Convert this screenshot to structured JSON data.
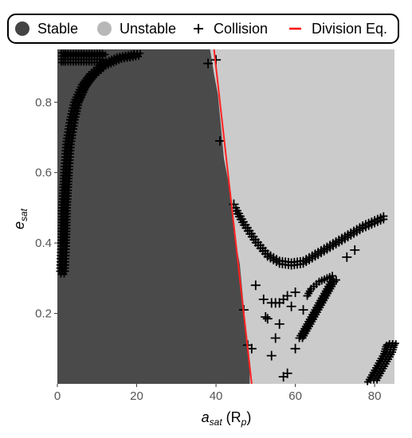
{
  "chart_data": {
    "type": "scatter",
    "xlabel": {
      "main": "a",
      "sub": "sat",
      "unit_pre": "(R",
      "unit_sub": "p",
      "unit_post": ")"
    },
    "ylabel": {
      "main": "e",
      "sub": "sat"
    },
    "xlim": [
      0,
      85
    ],
    "ylim": [
      0,
      0.95
    ],
    "x_ticks": [
      0,
      20,
      40,
      60,
      80
    ],
    "y_ticks": [
      0.2,
      0.4,
      0.6,
      0.8
    ],
    "grid": false,
    "legend_position": "top",
    "legend": [
      {
        "label": "Stable",
        "marker": "filled-circle",
        "color": "#444444"
      },
      {
        "label": "Unstable",
        "marker": "filled-circle",
        "color": "#b8b8b8"
      },
      {
        "label": "Collision",
        "marker": "plus",
        "color": "#000000"
      },
      {
        "label": "Division Eq.",
        "marker": "line",
        "color": "#ff0000"
      }
    ],
    "colors": {
      "stable": "#4a4a4a",
      "unstable": "#cbcbcb",
      "collision": "#000000",
      "division": "#ff2222"
    },
    "stable_boundary": [
      [
        38.5,
        0.95
      ],
      [
        39.5,
        0.88
      ],
      [
        40.5,
        0.82
      ],
      [
        41,
        0.76
      ],
      [
        41.5,
        0.7
      ],
      [
        42,
        0.64
      ],
      [
        43,
        0.58
      ],
      [
        44,
        0.52
      ],
      [
        44.5,
        0.46
      ],
      [
        45,
        0.4
      ],
      [
        46,
        0.34
      ],
      [
        46.5,
        0.28
      ],
      [
        47,
        0.22
      ],
      [
        47.5,
        0.16
      ],
      [
        48,
        0.1
      ],
      [
        48.5,
        0.04
      ],
      [
        48.5,
        0
      ]
    ],
    "division_eq": [
      [
        39.5,
        0.95
      ],
      [
        49,
        0
      ]
    ],
    "collision_regions": {
      "left_band": [
        [
          0.5,
          0.32
        ],
        [
          0.8,
          0.4
        ],
        [
          1,
          0.5
        ],
        [
          1.5,
          0.6
        ],
        [
          2,
          0.68
        ],
        [
          3,
          0.75
        ],
        [
          4,
          0.8
        ],
        [
          6,
          0.85
        ],
        [
          8,
          0.88
        ],
        [
          11,
          0.91
        ],
        [
          15,
          0.93
        ],
        [
          20,
          0.94
        ]
      ],
      "upper_arc": [
        [
          45,
          0.5
        ],
        [
          47,
          0.46
        ],
        [
          50,
          0.41
        ],
        [
          53,
          0.37
        ],
        [
          56,
          0.35
        ],
        [
          59,
          0.345
        ],
        [
          62,
          0.35
        ],
        [
          65,
          0.37
        ],
        [
          68,
          0.39
        ],
        [
          71,
          0.41
        ],
        [
          74,
          0.43
        ],
        [
          77,
          0.45
        ],
        [
          80,
          0.465
        ],
        [
          83,
          0.48
        ]
      ],
      "lower_branch": [
        [
          61,
          0.13
        ],
        [
          62,
          0.15
        ],
        [
          63,
          0.17
        ],
        [
          64,
          0.19
        ],
        [
          65,
          0.21
        ],
        [
          66,
          0.23
        ],
        [
          67,
          0.25
        ],
        [
          68,
          0.27
        ],
        [
          69,
          0.29
        ],
        [
          70,
          0.3
        ]
      ],
      "mid_branch": [
        [
          63,
          0.25
        ],
        [
          64,
          0.27
        ],
        [
          66,
          0.29
        ],
        [
          68,
          0.3
        ],
        [
          70,
          0.31
        ]
      ],
      "bottom_right": [
        [
          79,
          0.01
        ],
        [
          80,
          0.03
        ],
        [
          81,
          0.05
        ],
        [
          82,
          0.07
        ],
        [
          83,
          0.09
        ],
        [
          83.5,
          0.11
        ],
        [
          84,
          0.12
        ]
      ],
      "top_cluster": [
        [
          1,
          0.94
        ],
        [
          2,
          0.94
        ],
        [
          4,
          0.94
        ],
        [
          6,
          0.94
        ],
        [
          8,
          0.94
        ],
        [
          10,
          0.94
        ],
        [
          12,
          0.94
        ]
      ],
      "scatter": [
        [
          38,
          0.91
        ],
        [
          40,
          0.92
        ],
        [
          41,
          0.69
        ],
        [
          44.5,
          0.51
        ],
        [
          47,
          0.21
        ],
        [
          48,
          0.11
        ],
        [
          49,
          0.1
        ],
        [
          50,
          0.28
        ],
        [
          52,
          0.24
        ],
        [
          52.5,
          0.19
        ],
        [
          53,
          0.185
        ],
        [
          54,
          0.23
        ],
        [
          55,
          0.23
        ],
        [
          56,
          0.23
        ],
        [
          57,
          0.24
        ],
        [
          58,
          0.25
        ],
        [
          59,
          0.22
        ],
        [
          60,
          0.26
        ],
        [
          62,
          0.21
        ],
        [
          54,
          0.08
        ],
        [
          55,
          0.13
        ],
        [
          56,
          0.17
        ],
        [
          57,
          0.02
        ],
        [
          58,
          0.03
        ],
        [
          60,
          0.1
        ],
        [
          73,
          0.36
        ],
        [
          75,
          0.38
        ]
      ]
    }
  }
}
